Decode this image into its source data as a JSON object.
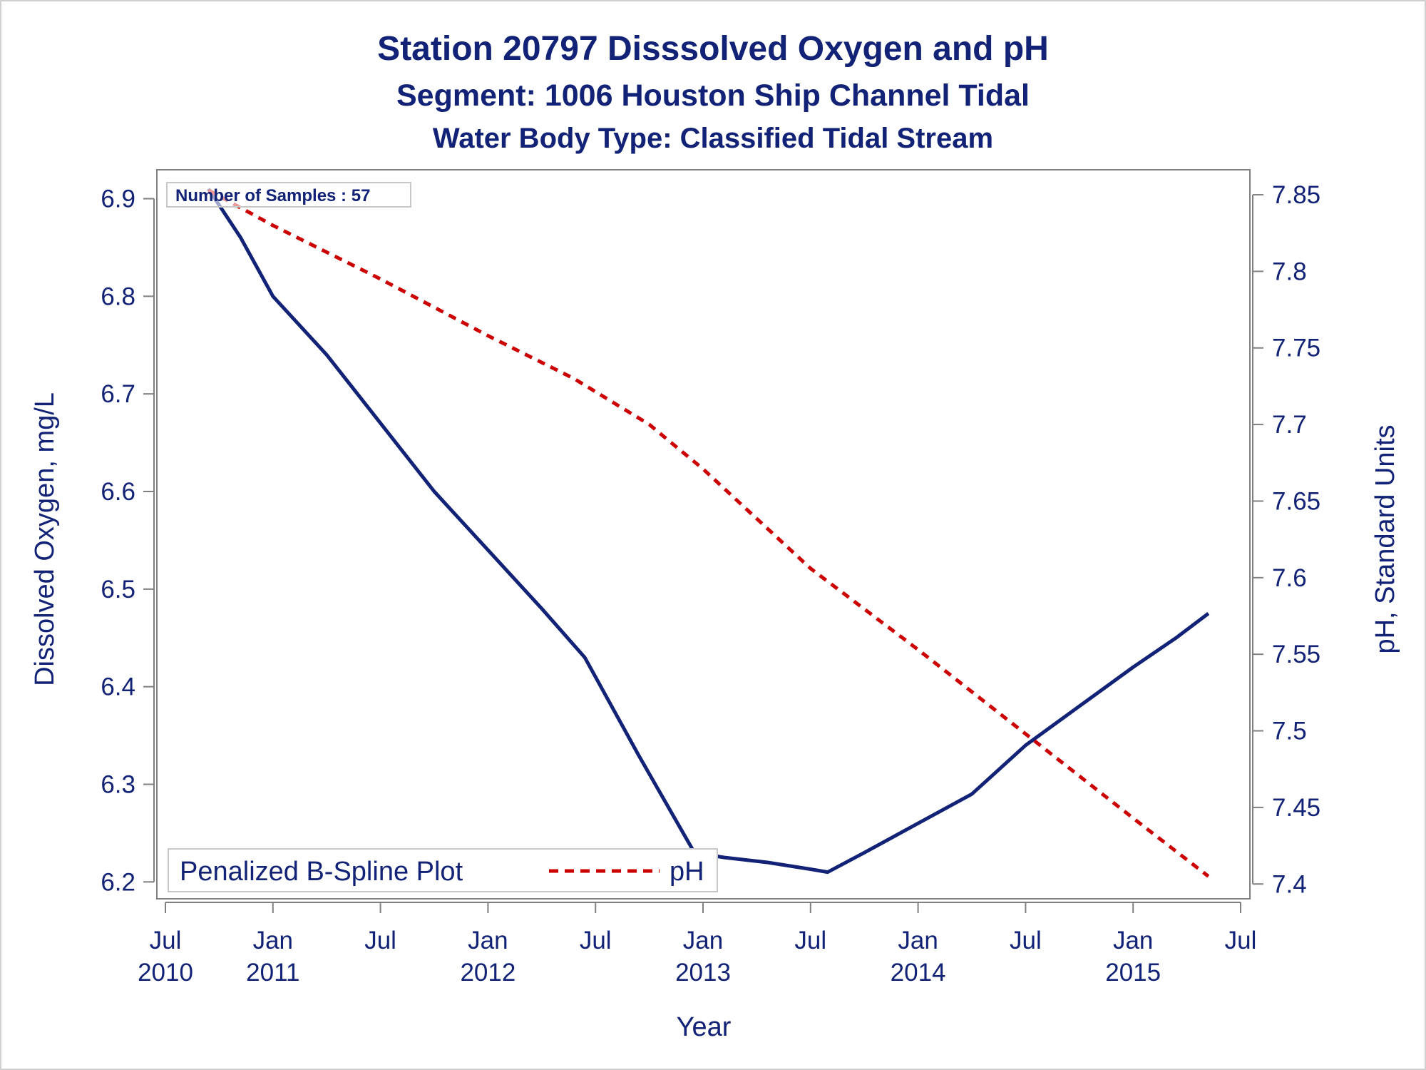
{
  "titles": {
    "line1": "Station 20797   Disssolved Oxygen and pH",
    "line2": "Segment: 1006  Houston Ship Channel Tidal",
    "line3": "Water Body Type: Classified Tidal Stream"
  },
  "inset_label": "Number of Samples : 57",
  "legend": {
    "title": "Penalized B-Spline Plot",
    "entry": "pH"
  },
  "colors": {
    "text": "#112277",
    "do_line": "#112277",
    "ph_line": "#cc0000",
    "axis": "#808080"
  },
  "chart_data": {
    "type": "line",
    "xlabel": "Year",
    "ylabel": "Dissolved Oxygen, mg/L",
    "y2label": "pH, Standard Units",
    "xlim": [
      2010.5,
      2015.5
    ],
    "ylim": [
      6.19,
      6.915
    ],
    "y2lim": [
      7.395,
      7.857
    ],
    "x_ticks": [
      {
        "x": 2010.5,
        "line1": "Jul",
        "line2": "2010"
      },
      {
        "x": 2011.0,
        "line1": "Jan",
        "line2": "2011"
      },
      {
        "x": 2011.5,
        "line1": "Jul",
        "line2": ""
      },
      {
        "x": 2012.0,
        "line1": "Jan",
        "line2": "2012"
      },
      {
        "x": 2012.5,
        "line1": "Jul",
        "line2": ""
      },
      {
        "x": 2013.0,
        "line1": "Jan",
        "line2": "2013"
      },
      {
        "x": 2013.5,
        "line1": "Jul",
        "line2": ""
      },
      {
        "x": 2014.0,
        "line1": "Jan",
        "line2": "2014"
      },
      {
        "x": 2014.5,
        "line1": "Jul",
        "line2": ""
      },
      {
        "x": 2015.0,
        "line1": "Jan",
        "line2": "2015"
      },
      {
        "x": 2015.5,
        "line1": "Jul",
        "line2": ""
      }
    ],
    "y_ticks": [
      "6.2",
      "6.3",
      "6.4",
      "6.5",
      "6.6",
      "6.7",
      "6.8",
      "6.9"
    ],
    "y2_ticks": [
      "7.4",
      "7.45",
      "7.5",
      "7.55",
      "7.6",
      "7.65",
      "7.7",
      "7.75",
      "7.8",
      "7.85"
    ],
    "series": [
      {
        "name": "Dissolved Oxygen",
        "axis": "left",
        "style": "solid",
        "points": [
          [
            2010.7,
            6.91
          ],
          [
            2010.85,
            6.86
          ],
          [
            2011.0,
            6.8
          ],
          [
            2011.25,
            6.74
          ],
          [
            2011.5,
            6.67
          ],
          [
            2011.75,
            6.6
          ],
          [
            2012.0,
            6.54
          ],
          [
            2012.25,
            6.48
          ],
          [
            2012.45,
            6.43
          ],
          [
            2012.7,
            6.33
          ],
          [
            2012.96,
            6.23
          ],
          [
            2013.1,
            6.225
          ],
          [
            2013.3,
            6.22
          ],
          [
            2013.5,
            6.213
          ],
          [
            2013.58,
            6.21
          ],
          [
            2013.75,
            6.23
          ],
          [
            2014.0,
            6.26
          ],
          [
            2014.25,
            6.29
          ],
          [
            2014.5,
            6.34
          ],
          [
            2014.75,
            6.38
          ],
          [
            2015.0,
            6.42
          ],
          [
            2015.2,
            6.45
          ],
          [
            2015.35,
            6.475
          ]
        ]
      },
      {
        "name": "pH",
        "axis": "right",
        "style": "dashed",
        "points": [
          [
            2010.7,
            7.853
          ],
          [
            2011.0,
            7.83
          ],
          [
            2011.5,
            7.795
          ],
          [
            2012.0,
            7.758
          ],
          [
            2012.4,
            7.73
          ],
          [
            2012.75,
            7.7
          ],
          [
            2013.0,
            7.671
          ],
          [
            2013.5,
            7.606
          ],
          [
            2014.0,
            7.553
          ],
          [
            2014.5,
            7.498
          ],
          [
            2015.0,
            7.443
          ],
          [
            2015.35,
            7.405
          ]
        ]
      }
    ]
  }
}
